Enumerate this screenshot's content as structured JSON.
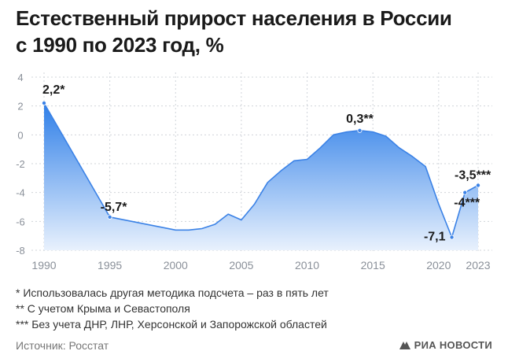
{
  "header": {
    "title_line1": "Естественный прирост населения в России",
    "title_line2": "с 1990 по 2023 год, %"
  },
  "chart_data": {
    "type": "area",
    "title": "Естественный прирост населения в России с 1990 по 2023 год, %",
    "xlabel": "",
    "ylabel": "",
    "xlim": [
      1990,
      2023
    ],
    "ylim": [
      -8,
      4
    ],
    "x_ticks": [
      1990,
      1995,
      2000,
      2005,
      2010,
      2015,
      2020,
      2023
    ],
    "y_ticks": [
      4,
      2,
      0,
      -2,
      -4,
      -6,
      -8
    ],
    "grid": true,
    "series": [
      {
        "x": [
          1990,
          1995,
          2000,
          2001,
          2002,
          2003,
          2004,
          2005,
          2006,
          2007,
          2008,
          2009,
          2010,
          2011,
          2012,
          2013,
          2014,
          2015,
          2016,
          2017,
          2018,
          2019,
          2020,
          2021
        ],
        "values": [
          2.2,
          -5.7,
          -6.6,
          -6.6,
          -6.5,
          -6.2,
          -5.5,
          -5.9,
          -4.8,
          -3.3,
          -2.5,
          -1.8,
          -1.7,
          -0.9,
          0.0,
          0.2,
          0.3,
          0.2,
          -0.1,
          -0.9,
          -1.5,
          -2.2,
          -4.8,
          -7.1
        ]
      },
      {
        "x": [
          2021,
          2022,
          2023
        ],
        "values": [
          -7.1,
          -4.0,
          -3.5
        ]
      }
    ],
    "annotations": [
      {
        "x": 1990,
        "y": 2.2,
        "text": "2,2*"
      },
      {
        "x": 1995,
        "y": -5.7,
        "text": "-5,7*"
      },
      {
        "x": 2014,
        "y": 0.3,
        "text": "0,3**"
      },
      {
        "x": 2021,
        "y": -7.1,
        "text": "-7,1"
      },
      {
        "x": 2022,
        "y": -4.0,
        "text": "-4***"
      },
      {
        "x": 2023,
        "y": -3.5,
        "text": "-3,5***"
      }
    ],
    "colors": {
      "line": "#3b82e6",
      "fill_top": "#2f7fe8",
      "fill_bottom": "#e8f1fd",
      "grid": "#d0d4da",
      "tick": "#8a9099"
    }
  },
  "notes": [
    "* Использовалась другая методика подсчета – раз в пять лет",
    "** С учетом Крыма и Севастополя",
    "*** Без учета ДНР, ЛНР, Херсонской и Запорожской областей"
  ],
  "source": "Источник: Росстат",
  "brand": "РИА НОВОСТИ"
}
